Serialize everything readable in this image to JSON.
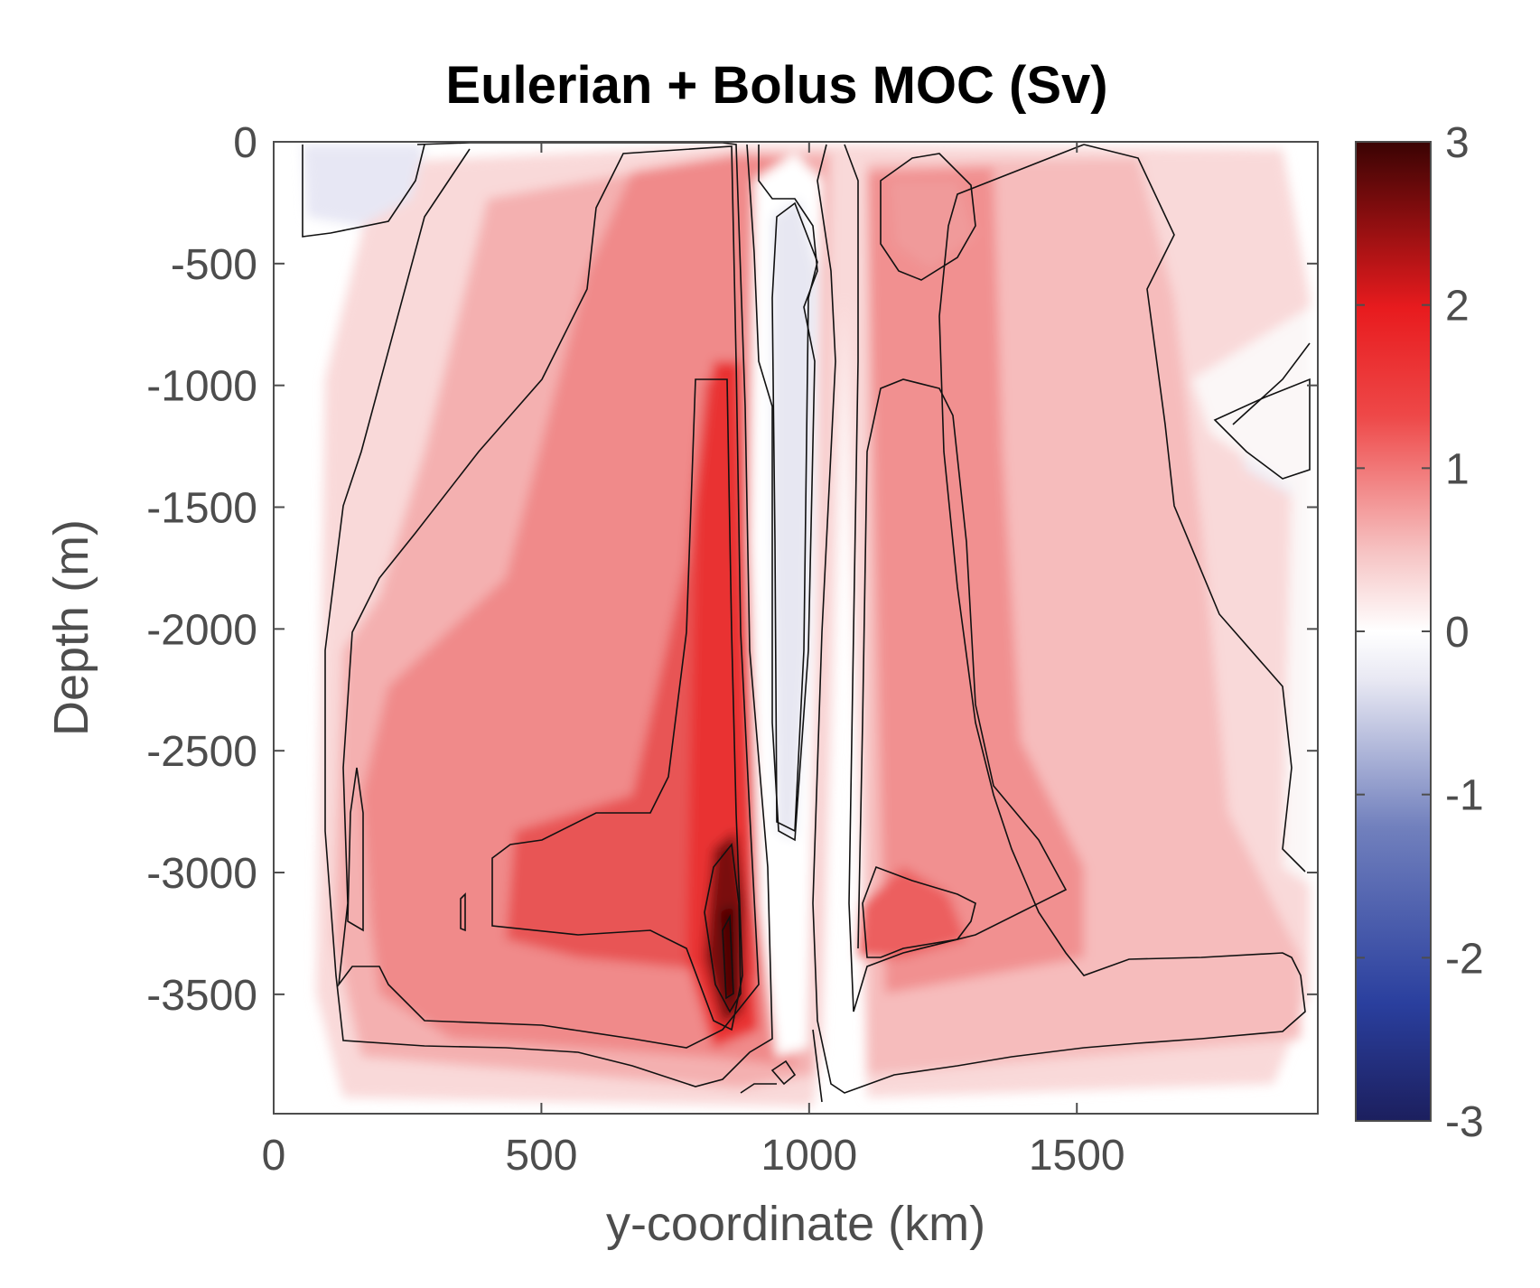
{
  "chart_data": {
    "type": "heatmap",
    "title": "Eulerian + Bolus MOC (Sv)",
    "xlabel": "y-coordinate (km)",
    "ylabel": "Depth (m)",
    "xlim": [
      0,
      1950
    ],
    "ylim": [
      -3990,
      0
    ],
    "xticks": [
      0,
      500,
      1000,
      1500
    ],
    "xtick_labels": [
      "0",
      "500",
      "1000",
      "1500"
    ],
    "yticks": [
      0,
      -500,
      -1000,
      -1500,
      -2000,
      -2500,
      -3000,
      -3500
    ],
    "ytick_labels": [
      "0",
      "-500",
      "-1000",
      "-1500",
      "-2000",
      "-2500",
      "-3000",
      "-3500"
    ],
    "colorbar": {
      "clim": [
        -3,
        3
      ],
      "ticks": [
        3,
        2,
        1,
        0,
        -1,
        -2,
        -3
      ],
      "tick_labels": [
        "3",
        "2",
        "1",
        "0",
        "-1",
        "-2",
        "-3"
      ],
      "colors": [
        "#1c1f5e",
        "#2a3f9e",
        "#7180bd",
        "#e8e8f3",
        "#ffffff",
        "#f6c4c4",
        "#ee4848",
        "#e81b1e",
        "#3a0303"
      ]
    },
    "contour_levels": [
      0,
      0.5,
      1,
      1.5,
      2,
      2.5
    ],
    "features": [
      {
        "kind": "max",
        "x": 850,
        "y": -3400,
        "value": 2.9
      },
      {
        "kind": "negative",
        "x": 1000,
        "y": -600,
        "value": -0.2
      },
      {
        "kind": "negative",
        "x": 120,
        "y": -150,
        "value": -0.2
      },
      {
        "kind": "negative",
        "x": 1900,
        "y": -1200,
        "value": -0.1
      },
      {
        "kind": "max",
        "x": 1200,
        "y": -3200,
        "value": 1.7
      },
      {
        "kind": "max",
        "x": 1200,
        "y": -250,
        "value": 1.0
      }
    ]
  }
}
